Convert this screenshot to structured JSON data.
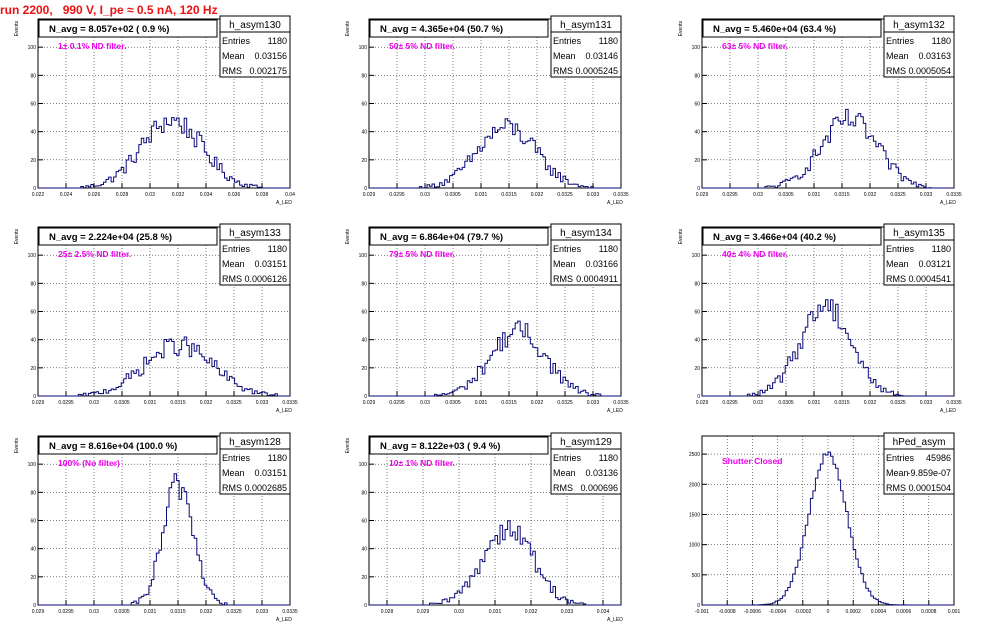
{
  "header": {
    "run_title": "run 2200,   990 V, I_pe ≈ 0.5 nA, 120 Hz"
  },
  "style": {
    "hist_color": "#0a0a7a",
    "label_color": "#ee00ee",
    "title_color": "#ee1111",
    "grid": "dotted"
  },
  "chart_data": [
    {
      "type": "histogram",
      "title": "h_asym130",
      "navg_text": "N_avg = 8.057e+02 ( 0.9 %)",
      "filter_label": "1± 0.1% ND filter.",
      "stats": [
        [
          "Entries",
          "1180"
        ],
        [
          "Mean",
          "0.03156"
        ],
        [
          "RMS",
          "0.002175"
        ]
      ],
      "ylabel": "Events",
      "xlabel": "A_LED",
      "xlim": [
        0.022,
        0.04
      ],
      "ylim": [
        0,
        120
      ],
      "xticks": [
        "0.022",
        "0.024",
        "0.026",
        "0.028",
        "0.03",
        "0.032",
        "0.034",
        "0.036",
        "0.038",
        "0.04"
      ],
      "yticks": [
        "0",
        "20",
        "40",
        "60",
        "80",
        "100"
      ],
      "mean": 0.03156,
      "sigma": 0.002175,
      "peak": 48
    },
    {
      "type": "histogram",
      "title": "h_asym131",
      "navg_text": "N_avg = 4.365e+04 (50.7 %)",
      "filter_label": "50± 5% ND filter.",
      "stats": [
        [
          "Entries",
          "1180"
        ],
        [
          "Mean",
          "0.03146"
        ],
        [
          "RMS",
          "0.0005245"
        ]
      ],
      "ylabel": "Events",
      "xlabel": "A_LED",
      "xlim": [
        0.029,
        0.0335
      ],
      "ylim": [
        0,
        120
      ],
      "xticks": [
        "0.029",
        "0.0295",
        "0.03",
        "0.0305",
        "0.031",
        "0.0315",
        "0.032",
        "0.0325",
        "0.033",
        "0.0335"
      ],
      "yticks": [
        "0",
        "20",
        "40",
        "60",
        "80",
        "100"
      ],
      "mean": 0.03146,
      "sigma": 0.00052,
      "peak": 43
    },
    {
      "type": "histogram",
      "title": "h_asym132",
      "navg_text": "N_avg = 5.460e+04 (63.4 %)",
      "filter_label": "63± 5% ND filter.",
      "stats": [
        [
          "Entries",
          "1180"
        ],
        [
          "Mean",
          "0.03163"
        ],
        [
          "RMS",
          "0.0005054"
        ]
      ],
      "ylabel": "Events",
      "xlabel": "A_LED",
      "xlim": [
        0.029,
        0.0335
      ],
      "ylim": [
        0,
        120
      ],
      "xticks": [
        "0.029",
        "0.0295",
        "0.03",
        "0.0305",
        "0.031",
        "0.0315",
        "0.032",
        "0.0325",
        "0.033",
        "0.0335"
      ],
      "yticks": [
        "0",
        "20",
        "40",
        "60",
        "80",
        "100"
      ],
      "mean": 0.03163,
      "sigma": 0.0005,
      "peak": 48
    },
    {
      "type": "histogram",
      "title": "h_asym133",
      "navg_text": "N_avg = 2.224e+04 (25.8 %)",
      "filter_label": "25± 2.5% ND filter.",
      "stats": [
        [
          "Entries",
          "1180"
        ],
        [
          "Mean",
          "0.03151"
        ],
        [
          "RMS",
          "0.0006126"
        ]
      ],
      "ylabel": "Events",
      "xlabel": "A_LED",
      "xlim": [
        0.029,
        0.0335
      ],
      "ylim": [
        0,
        120
      ],
      "xticks": [
        "0.029",
        "0.0295",
        "0.03",
        "0.0305",
        "0.031",
        "0.0315",
        "0.032",
        "0.0325",
        "0.033",
        "0.0335"
      ],
      "yticks": [
        "0",
        "20",
        "40",
        "60",
        "80",
        "100"
      ],
      "mean": 0.03151,
      "sigma": 0.00061,
      "peak": 36
    },
    {
      "type": "histogram",
      "title": "h_asym134",
      "navg_text": "N_avg = 6.864e+04 (79.7 %)",
      "filter_label": "79± 5% ND filter.",
      "stats": [
        [
          "Entries",
          "1180"
        ],
        [
          "Mean",
          "0.03166"
        ],
        [
          "RMS",
          "0.0004911"
        ]
      ],
      "ylabel": "Events",
      "xlabel": "A_LED",
      "xlim": [
        0.029,
        0.0335
      ],
      "ylim": [
        0,
        120
      ],
      "xticks": [
        "0.029",
        "0.0295",
        "0.03",
        "0.0305",
        "0.031",
        "0.0315",
        "0.032",
        "0.0325",
        "0.033",
        "0.0335"
      ],
      "yticks": [
        "0",
        "20",
        "40",
        "60",
        "80",
        "100"
      ],
      "mean": 0.03166,
      "sigma": 0.00049,
      "peak": 46
    },
    {
      "type": "histogram",
      "title": "h_asym135",
      "navg_text": "N_avg = 3.466e+04 (40.2 %)",
      "filter_label": "40± 4% ND filter.",
      "stats": [
        [
          "Entries",
          "1180"
        ],
        [
          "Mean",
          "0.03121"
        ],
        [
          "RMS",
          "0.0004541"
        ]
      ],
      "ylabel": "Events",
      "xlabel": "A_LED",
      "xlim": [
        0.029,
        0.0335
      ],
      "ylim": [
        0,
        120
      ],
      "xticks": [
        "0.029",
        "0.0295",
        "0.03",
        "0.0305",
        "0.031",
        "0.0315",
        "0.032",
        "0.0325",
        "0.033",
        "0.0335"
      ],
      "yticks": [
        "0",
        "20",
        "40",
        "60",
        "80",
        "100"
      ],
      "mean": 0.03121,
      "sigma": 0.00045,
      "peak": 65
    },
    {
      "type": "histogram",
      "title": "h_asym128",
      "navg_text": "N_avg = 8.616e+04 (100.0 %)",
      "filter_label": "100% (No filter)",
      "stats": [
        [
          "Entries",
          "1180"
        ],
        [
          "Mean",
          "0.03151"
        ],
        [
          "RMS",
          "0.0002685"
        ]
      ],
      "ylabel": "Events",
      "xlabel": "A_LED",
      "xlim": [
        0.029,
        0.0335
      ],
      "ylim": [
        0,
        120
      ],
      "xticks": [
        "0.029",
        "0.0295",
        "0.03",
        "0.0305",
        "0.031",
        "0.0315",
        "0.032",
        "0.0325",
        "0.033",
        "0.0335"
      ],
      "yticks": [
        "0",
        "20",
        "40",
        "60",
        "80",
        "100"
      ],
      "mean": 0.03151,
      "sigma": 0.00027,
      "peak": 86
    },
    {
      "type": "histogram",
      "title": "h_asym129",
      "navg_text": "N_avg = 8.122e+03 ( 9.4 %)",
      "filter_label": "10± 1% ND filter.",
      "stats": [
        [
          "Entries",
          "1180"
        ],
        [
          "Mean",
          "0.03136"
        ],
        [
          "RMS",
          "0.000696"
        ]
      ],
      "ylabel": "Events",
      "xlabel": "A_LED",
      "xlim": [
        0.0275,
        0.0345
      ],
      "ylim": [
        0,
        120
      ],
      "xticks": [
        "0.028",
        "0.029",
        "0.03",
        "0.031",
        "0.032",
        "0.033",
        "0.034"
      ],
      "yticks": [
        "0",
        "20",
        "40",
        "60",
        "80",
        "100"
      ],
      "mean": 0.03136,
      "sigma": 0.0007,
      "peak": 55
    },
    {
      "type": "histogram",
      "title": "hPed_asym",
      "navg_text": "",
      "filter_label": "Shutter Closed",
      "stats": [
        [
          "Entries",
          "45986"
        ],
        [
          "Mean",
          "-9.859e-07"
        ],
        [
          "RMS",
          "0.0001504"
        ]
      ],
      "ylabel": "",
      "xlabel": "",
      "xlim": [
        -0.001,
        0.001
      ],
      "ylim": [
        0,
        2800
      ],
      "xticks": [
        "-0.001",
        "-0.0008",
        "-0.0006",
        "-0.0004",
        "-0.0002",
        "0",
        "0.0002",
        "0.0004",
        "0.0006",
        "0.0008",
        "0.001"
      ],
      "yticks": [
        "0",
        "500",
        "1000",
        "1500",
        "2000",
        "2500"
      ],
      "mean": 0.0,
      "sigma": 0.00015,
      "peak": 2500
    }
  ]
}
